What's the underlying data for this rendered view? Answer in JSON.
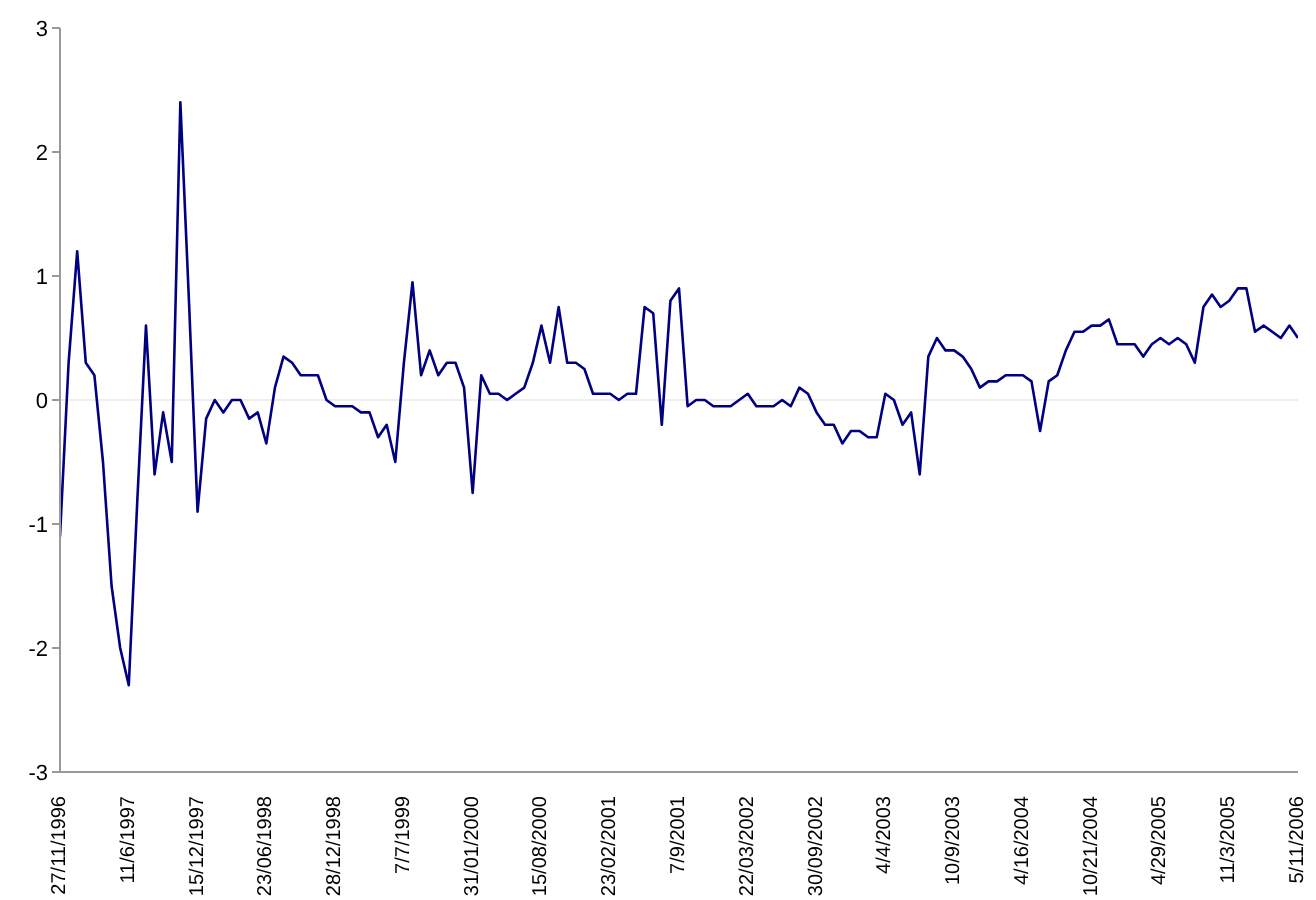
{
  "chart_data": {
    "type": "line",
    "categories": [
      "27/11/1996",
      null,
      null,
      null,
      null,
      null,
      null,
      null,
      "11/6/1997",
      null,
      null,
      null,
      null,
      null,
      null,
      null,
      "15/12/1997",
      null,
      null,
      null,
      null,
      null,
      null,
      null,
      "23/06/1998",
      null,
      null,
      null,
      null,
      null,
      null,
      null,
      "28/12/1998",
      null,
      null,
      null,
      null,
      null,
      null,
      null,
      "7/7/1999",
      null,
      null,
      null,
      null,
      null,
      null,
      null,
      "31/01/2000",
      null,
      null,
      null,
      null,
      null,
      null,
      null,
      "15/08/2000",
      null,
      null,
      null,
      null,
      null,
      null,
      null,
      "23/02/2001",
      null,
      null,
      null,
      null,
      null,
      null,
      null,
      "7/9/2001",
      null,
      null,
      null,
      null,
      null,
      null,
      null,
      "22/03/2002",
      null,
      null,
      null,
      null,
      null,
      null,
      null,
      "30/09/2002",
      null,
      null,
      null,
      null,
      null,
      null,
      null,
      "4/4/2003",
      null,
      null,
      null,
      null,
      null,
      null,
      null,
      "10/9/2003",
      null,
      null,
      null,
      null,
      null,
      null,
      null,
      "4/16/2004",
      null,
      null,
      null,
      null,
      null,
      null,
      null,
      "10/21/2004",
      null,
      null,
      null,
      null,
      null,
      null,
      null,
      "4/29/2005",
      null,
      null,
      null,
      null,
      null,
      null,
      null,
      "11/3/2005",
      null,
      null,
      null,
      null,
      null,
      null,
      null,
      "5/11/2006"
    ],
    "series": [
      {
        "color": "#000080",
        "values": [
          -1.1,
          0.3,
          1.2,
          0.3,
          0.2,
          -0.5,
          -1.5,
          -2.0,
          -2.3,
          -0.8,
          0.6,
          -0.6,
          -0.1,
          -0.5,
          2.4,
          0.8,
          -0.9,
          -0.15,
          0.0,
          -0.1,
          0.0,
          0.0,
          -0.15,
          -0.1,
          -0.35,
          0.1,
          0.35,
          0.3,
          0.2,
          0.2,
          0.2,
          0.0,
          -0.05,
          -0.05,
          -0.05,
          -0.1,
          -0.1,
          -0.3,
          -0.2,
          -0.5,
          0.3,
          0.95,
          0.2,
          0.4,
          0.2,
          0.3,
          0.3,
          0.1,
          -0.75,
          0.2,
          0.05,
          0.05,
          0.0,
          0.05,
          0.1,
          0.3,
          0.6,
          0.3,
          0.75,
          0.3,
          0.3,
          0.25,
          0.05,
          0.05,
          0.05,
          0.0,
          0.05,
          0.05,
          0.75,
          0.7,
          -0.2,
          0.8,
          0.9,
          -0.05,
          0.0,
          0.0,
          -0.05,
          -0.05,
          -0.05,
          0.0,
          0.05,
          -0.05,
          -0.05,
          -0.05,
          0.0,
          -0.05,
          0.1,
          0.05,
          -0.1,
          -0.2,
          -0.2,
          -0.35,
          -0.25,
          -0.25,
          -0.3,
          -0.3,
          0.05,
          0.0,
          -0.2,
          -0.1,
          -0.6,
          0.35,
          0.5,
          0.4,
          0.4,
          0.35,
          0.25,
          0.1,
          0.15,
          0.15,
          0.2,
          0.2,
          0.2,
          0.15,
          -0.25,
          0.15,
          0.2,
          0.4,
          0.55,
          0.55,
          0.6,
          0.6,
          0.65,
          0.45,
          0.45,
          0.45,
          0.35,
          0.45,
          0.5,
          0.45,
          0.5,
          0.45,
          0.3,
          0.75,
          0.85,
          0.75,
          0.8,
          0.9,
          0.9,
          0.55,
          0.6,
          0.55,
          0.5,
          0.6,
          0.5
        ]
      }
    ],
    "ylim": [
      -3,
      3
    ],
    "yticks": [
      -3,
      -2,
      -1,
      0,
      1,
      2,
      3
    ],
    "grid": false,
    "legend": false,
    "marker": "none",
    "line_style": "solid",
    "ref_lines": [
      {
        "axis": "y",
        "value": 0,
        "color": "#eeeeee"
      }
    ]
  }
}
